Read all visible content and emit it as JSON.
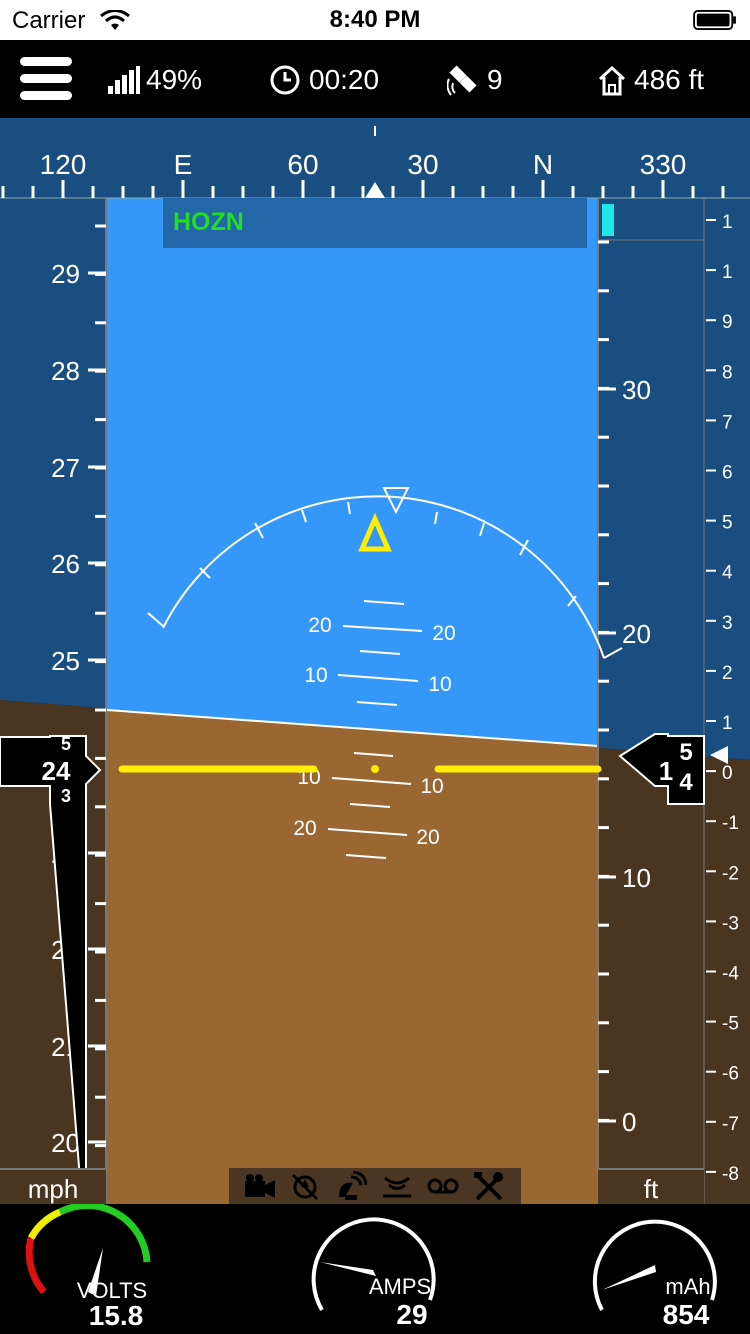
{
  "status_bar": {
    "carrier": "Carrier",
    "time": "8:40 PM"
  },
  "header": {
    "signal": "49%",
    "flight_time": "00:20",
    "satellites": "9",
    "home_distance": "486 ft"
  },
  "compass": {
    "labels": [
      {
        "text": "120",
        "pos": 0
      },
      {
        "text": "E",
        "pos": 1
      },
      {
        "text": "60",
        "pos": 2
      },
      {
        "text": "30",
        "pos": 3
      },
      {
        "text": "N",
        "pos": 4
      },
      {
        "text": "330",
        "pos": 5
      }
    ]
  },
  "mode": "HOZN",
  "speed_tape": {
    "labels": [
      "29",
      "28",
      "27",
      "26",
      "25",
      "23",
      "22",
      "21",
      "20"
    ],
    "current_main": "24",
    "current_above": "5",
    "current_below": "3",
    "unit": "mph"
  },
  "altitude_tape": {
    "labels": [
      "30",
      "20",
      "10",
      "0"
    ],
    "current_main": "1",
    "current_top": "5",
    "current_bottom": "4",
    "unit": "ft"
  },
  "vario_scale": [
    "1",
    "1",
    "9",
    "8",
    "7",
    "6",
    "5",
    "4",
    "3",
    "2",
    "1",
    "0",
    "-1",
    "-2",
    "-3",
    "-4",
    "-5",
    "-6",
    "-7",
    "-8"
  ],
  "pitch_ladder": {
    "labels_left": [
      "20",
      "10",
      "10",
      "20"
    ],
    "labels_right": [
      "20",
      "10",
      "10",
      "20"
    ]
  },
  "gauges": [
    {
      "label": "VOLTS",
      "value": "15.8"
    },
    {
      "label": "AMPS",
      "value": "29"
    },
    {
      "label": "mAh",
      "value": "854"
    }
  ],
  "colors": {
    "sky": "#3598f9",
    "sky_dark": "#1b4e80",
    "ground": "#9a6632",
    "ground_dark": "#4a3520",
    "accent_yellow": "#ffee00",
    "mode_green": "#22dd22",
    "cyan": "#22e5e5"
  }
}
